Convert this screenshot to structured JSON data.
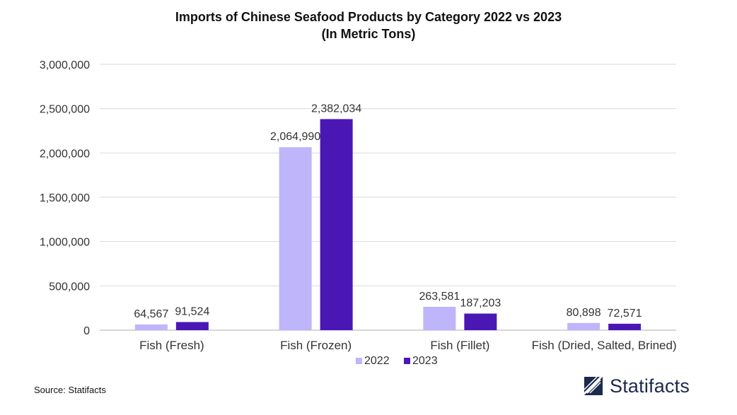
{
  "title_line1": "Imports of Chinese Seafood Products by Category 2022 vs 2023",
  "title_line2": "(In Metric Tons)",
  "source": "Source: Statifacts",
  "brand": "Statifacts",
  "colors": {
    "s2022": "#bfb5fb",
    "s2023": "#4a17b5",
    "grid": "#d9d9d9",
    "axis": "#bfbfbf",
    "text": "#333333"
  },
  "chart_data": {
    "type": "bar",
    "title": "Imports of Chinese Seafood Products by Category 2022 vs 2023 (In Metric Tons)",
    "categories": [
      "Fish (Fresh)",
      "Fish (Frozen)",
      "Fish (Fillet)",
      "Fish (Dried, Salted, Brined)"
    ],
    "series": [
      {
        "name": "2022",
        "values": [
          64567,
          2064990,
          263581,
          80898
        ],
        "labels": [
          "64,567",
          "2,064,990",
          "263,581",
          "80,898"
        ]
      },
      {
        "name": "2023",
        "values": [
          91524,
          2382034,
          187203,
          72571
        ],
        "labels": [
          "91,524",
          "2,382,034",
          "187,203",
          "72,571"
        ]
      }
    ],
    "yticks": [
      0,
      500000,
      1000000,
      1500000,
      2000000,
      2500000,
      3000000
    ],
    "ytick_labels": [
      "0",
      "500,000",
      "1,000,000",
      "1,500,000",
      "2,000,000",
      "2,500,000",
      "3,000,000"
    ],
    "ylim": [
      0,
      3000000
    ],
    "grid": true,
    "legend": "bottom-center"
  }
}
